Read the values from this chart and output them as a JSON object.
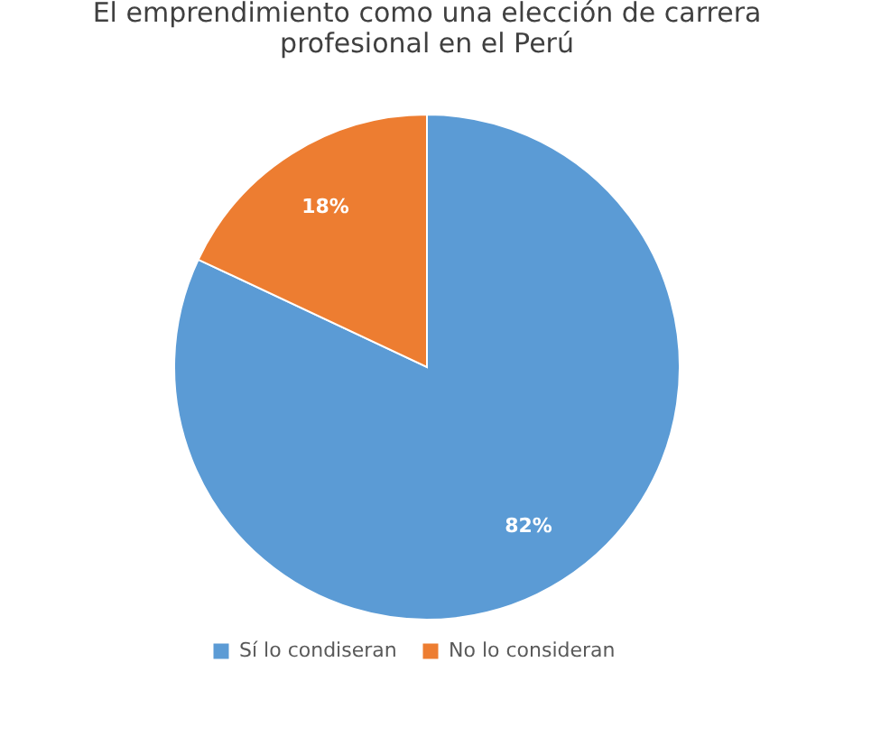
{
  "chart_data": {
    "type": "pie",
    "title": [
      "El emprendimiento como una elección de carrera",
      "profesional en el Perú"
    ],
    "categories": [
      "Sí lo condiseran",
      "No lo consideran"
    ],
    "values": [
      82,
      18
    ],
    "value_labels": [
      "82%",
      "18%"
    ],
    "colors": [
      "#5b9bd5",
      "#ed7d31"
    ],
    "legend": "bottom"
  }
}
